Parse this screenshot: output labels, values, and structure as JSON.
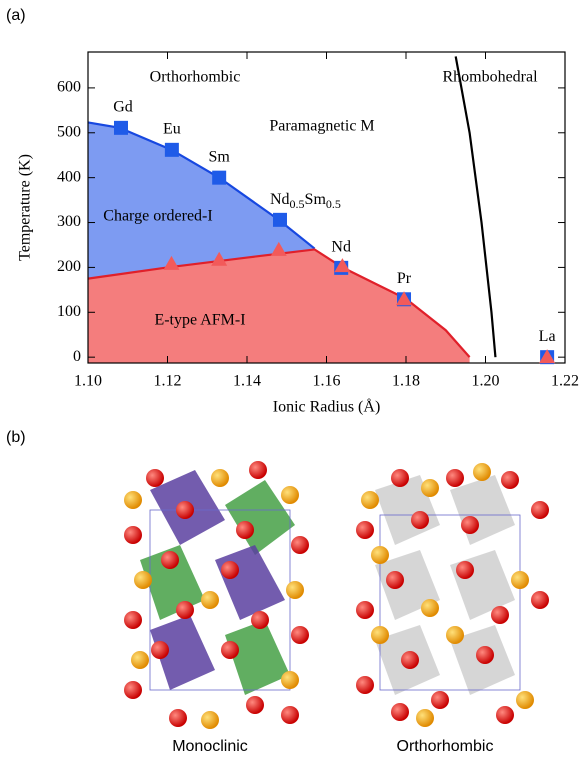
{
  "panels": {
    "a": "(a)",
    "b": "(b)",
    "captions": [
      "Monoclinic",
      "Orthorhombic"
    ]
  },
  "chart_data": {
    "type": "scatter",
    "x_label": "Ionic Radius (Å)",
    "y_label": "Temperature (K)",
    "xlim": [
      1.1,
      1.22
    ],
    "ylim": [
      -13,
      680
    ],
    "xticks": [
      {
        "value": 1.1,
        "label": "1.10"
      },
      {
        "value": 1.12,
        "label": "1.12"
      },
      {
        "value": 1.14,
        "label": "1.14"
      },
      {
        "value": 1.16,
        "label": "1.16"
      },
      {
        "value": 1.18,
        "label": "1.18"
      },
      {
        "value": 1.2,
        "label": "1.20"
      },
      {
        "value": 1.22,
        "label": "1.22"
      }
    ],
    "yticks": [
      0,
      100,
      200,
      300,
      400,
      500,
      600
    ],
    "series": [
      {
        "marker": "square",
        "color": "#1f5be8",
        "x": [
          1.1083,
          1.1211,
          1.133,
          1.1483,
          1.1637,
          1.1795,
          1.2155
        ],
        "values": [
          511,
          462,
          400,
          306,
          199,
          129,
          0
        ],
        "labels": [
          "Gd",
          "Eu",
          "Sm",
          [
            "Nd",
            "0.5",
            "Sm",
            "0.5"
          ],
          "Nd",
          "Pr",
          "La"
        ]
      },
      {
        "marker": "triangle",
        "color": "#f25a5a",
        "x": [
          1.121,
          1.133,
          1.148,
          1.164,
          1.1795,
          1.2155
        ],
        "values": [
          208,
          217,
          239,
          203,
          129,
          0
        ]
      }
    ],
    "curves": [
      {
        "color": "#1748e0",
        "fill": "#7d9bf2",
        "x": [
          1.1,
          1.108,
          1.121,
          1.133,
          1.148,
          1.157
        ],
        "values": [
          523,
          511,
          462,
          400,
          306,
          242
        ]
      },
      {
        "color": "#e0202a",
        "fill": "#f47d7d",
        "x": [
          1.1,
          1.12,
          1.14,
          1.157,
          1.164,
          1.18,
          1.19,
          1.196
        ],
        "values": [
          175,
          200,
          222,
          240,
          200,
          130,
          60,
          0
        ]
      },
      {
        "color": "#000000",
        "x": [
          1.1925,
          1.196,
          1.199,
          1.2015,
          1.2025
        ],
        "values": [
          670,
          500,
          300,
          100,
          0
        ]
      }
    ],
    "annotations": [
      "Orthorhombic",
      "Rhombohedral",
      "Paramagnetic M",
      "Charge ordered-I",
      "E-type AFM-I"
    ]
  }
}
